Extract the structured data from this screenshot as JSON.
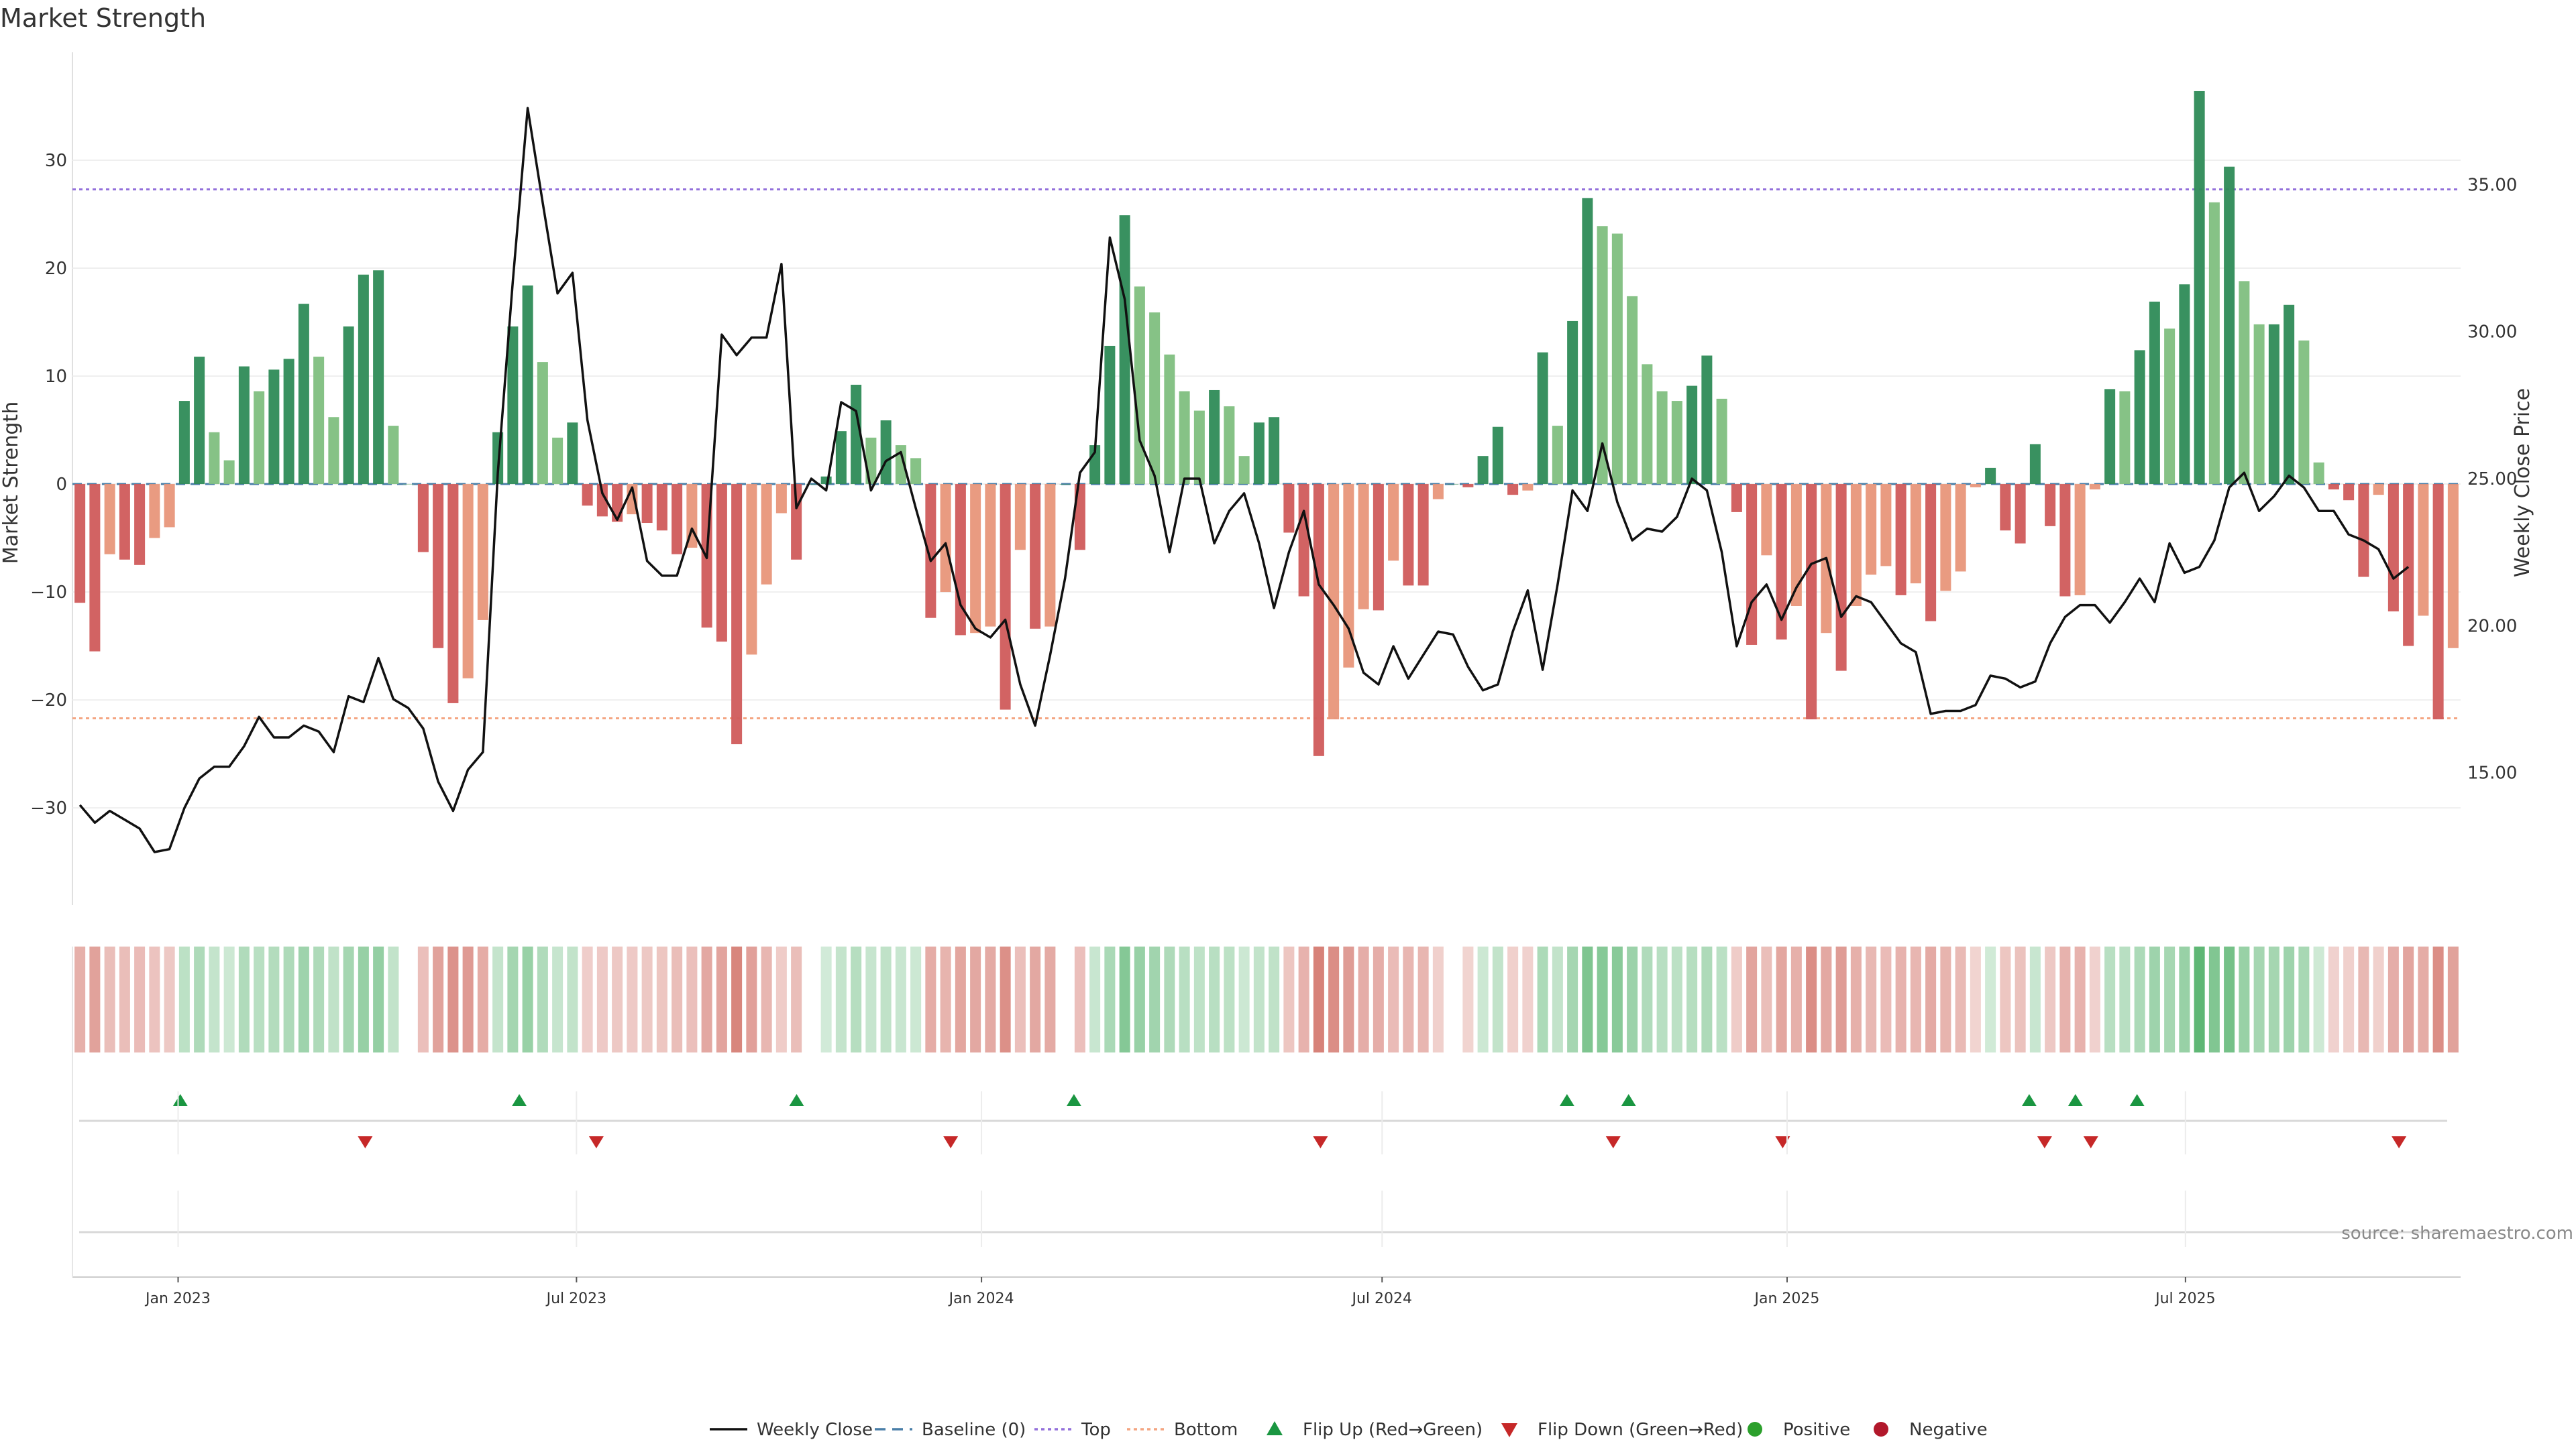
{
  "chart_data": {
    "type": "bar",
    "title": "Market Strength",
    "ylabel": "Market Strength",
    "y2label": "Weekly Close Price",
    "ylim": [
      -39,
      40
    ],
    "y2lim": [
      10.5,
      39.5
    ],
    "yticks": [
      30,
      20,
      10,
      0,
      -10,
      -20,
      -30
    ],
    "y2ticks": [
      "35.00",
      "30.00",
      "25.00",
      "20.00",
      "15.00"
    ],
    "x_start": "2022-11-14",
    "x_end": "2025-11-03",
    "xticks": [
      {
        "date": "2023-01-01",
        "label": "Jan 2023"
      },
      {
        "date": "2023-07-01",
        "label": "Jul 2023"
      },
      {
        "date": "2024-01-01",
        "label": "Jan 2024"
      },
      {
        "date": "2024-07-01",
        "label": "Jul 2024"
      },
      {
        "date": "2025-01-01",
        "label": "Jan 2025"
      },
      {
        "date": "2025-07-01",
        "label": "Jul 2025"
      }
    ],
    "top_level": 27.3,
    "bottom_level": -21.7,
    "strength": [
      -11,
      -15.5,
      -6.5,
      -7,
      -7.5,
      -5,
      -4,
      7.7,
      11.8,
      4.8,
      2.2,
      10.9,
      8.6,
      10.6,
      11.6,
      16.7,
      11.8,
      6.2,
      14.6,
      19.4,
      19.8,
      5.4,
      0,
      -6.3,
      -15.2,
      -20.3,
      -18,
      -12.6,
      4.8,
      14.6,
      18.4,
      11.3,
      4.3,
      5.7,
      -2,
      -3,
      -3.5,
      -2.8,
      -3.6,
      -4.3,
      -6.5,
      -5.9,
      -13.3,
      -14.6,
      -24.1,
      -15.8,
      -9.3,
      -2.7,
      -7,
      0,
      0.7,
      4.9,
      9.2,
      4.3,
      5.9,
      3.6,
      2.4,
      -12.4,
      -10,
      -14,
      -13.8,
      -13.2,
      -20.9,
      -6.1,
      -13.4,
      -13.2,
      0,
      -6.1,
      3.6,
      12.8,
      24.9,
      18.3,
      15.9,
      12,
      8.6,
      6.8,
      8.7,
      7.2,
      2.6,
      5.7,
      6.2,
      -4.5,
      -10.4,
      -25.2,
      -21.8,
      -17,
      -11.6,
      -11.7,
      -7.1,
      -9.4,
      -9.4,
      -1.4,
      0,
      -0.3,
      2.6,
      5.3,
      -1,
      -0.6,
      12.2,
      5.4,
      15.1,
      26.5,
      23.9,
      23.2,
      17.4,
      11.1,
      8.6,
      7.7,
      9.1,
      11.9,
      7.9,
      -2.6,
      -14.9,
      -6.6,
      -14.4,
      -11.3,
      -21.8,
      -13.8,
      -17.3,
      -11.3,
      -8.4,
      -7.6,
      -10.3,
      -9.2,
      -12.7,
      -9.9,
      -8.1,
      -0.3,
      1.5,
      -4.3,
      -5.5,
      3.7,
      -3.9,
      -10.4,
      -10.3,
      -0.5,
      8.8,
      8.6,
      12.4,
      16.9,
      14.4,
      18.5,
      36.4,
      26.1,
      29.4,
      18.8,
      14.8,
      14.8,
      16.6,
      13.3,
      2,
      -0.5,
      -1.5,
      -8.6,
      -1,
      -11.8,
      -15,
      -12.2,
      -21.8,
      -15.2
    ],
    "close": [
      13.9,
      13.3,
      13.7,
      13.4,
      13.1,
      12.3,
      12.4,
      13.8,
      14.8,
      15.2,
      15.2,
      15.9,
      16.9,
      16.2,
      16.2,
      16.6,
      16.4,
      15.7,
      17.6,
      17.4,
      18.9,
      17.5,
      17.2,
      16.5,
      14.7,
      13.7,
      15.1,
      15.7,
      25.2,
      31.7,
      37.6,
      34.4,
      31.3,
      32,
      27,
      24.5,
      23.6,
      24.7,
      22.2,
      21.7,
      21.7,
      23.3,
      22.3,
      29.9,
      29.2,
      29.8,
      29.8,
      32.3,
      24,
      25,
      24.6,
      27.6,
      27.3,
      24.6,
      25.6,
      25.9,
      24,
      22.2,
      22.8,
      20.7,
      19.9,
      19.6,
      20.2,
      18,
      16.6,
      19,
      21.6,
      25.2,
      25.9,
      33.2,
      31.1,
      26.3,
      25.1,
      22.5,
      25,
      25,
      22.8,
      23.9,
      24.5,
      22.8,
      20.6,
      22.5,
      23.9,
      21.4,
      20.7,
      19.9,
      18.4,
      18,
      19.3,
      18.2,
      19,
      19.8,
      19.7,
      18.6,
      17.8,
      18,
      19.8,
      21.2,
      18.5,
      21.4,
      24.6,
      23.9,
      26.2,
      24.2,
      22.9,
      23.3,
      23.2,
      23.7,
      25,
      24.6,
      22.5,
      19.3,
      20.8,
      21.4,
      20.2,
      21.3,
      22.1,
      22.3,
      20.3,
      21,
      20.8,
      20.1,
      19.4,
      19.1,
      17,
      17.1,
      17.1,
      17.3,
      18.3,
      18.2,
      17.9,
      18.1,
      19.4,
      20.3,
      20.7,
      20.7,
      20.1,
      20.8,
      21.6,
      20.8,
      22.8,
      21.8,
      22,
      22.9,
      24.7,
      25.2,
      23.9,
      24.4,
      25.1,
      24.7,
      23.9,
      23.9,
      23.1,
      22.9,
      22.6,
      21.6,
      22
    ],
    "flip_up": [
      "2023-01-02",
      "2023-06-05",
      "2023-10-09",
      "2024-02-12",
      "2024-09-23",
      "2024-10-21",
      "2025-04-21",
      "2025-05-12",
      "2025-06-09"
    ],
    "flip_down": [
      "2023-03-27",
      "2023-07-10",
      "2023-12-18",
      "2024-06-03",
      "2024-10-14",
      "2024-12-30",
      "2025-04-28",
      "2025-05-19",
      "2025-10-06"
    ],
    "legend": [
      "Weekly Close",
      "Baseline (0)",
      "Top",
      "Bottom",
      "Flip Up (Red→Green)",
      "Flip Down (Green→Red)",
      "Positive",
      "Negative"
    ],
    "source": "source: sharemaestro.com",
    "colors": {
      "green_strong": "#2e8b57",
      "green_light": "#7fbf7f",
      "red_strong": "#d05b5b",
      "red_light": "#e8967a",
      "line": "#111111",
      "baseline": "#4a7fa8",
      "top": "#9370db",
      "bottom": "#f4a582",
      "flip_up": "#1a9641",
      "flip_down": "#c62828",
      "positive": "#2ca02c",
      "negative": "#b2182b"
    }
  }
}
